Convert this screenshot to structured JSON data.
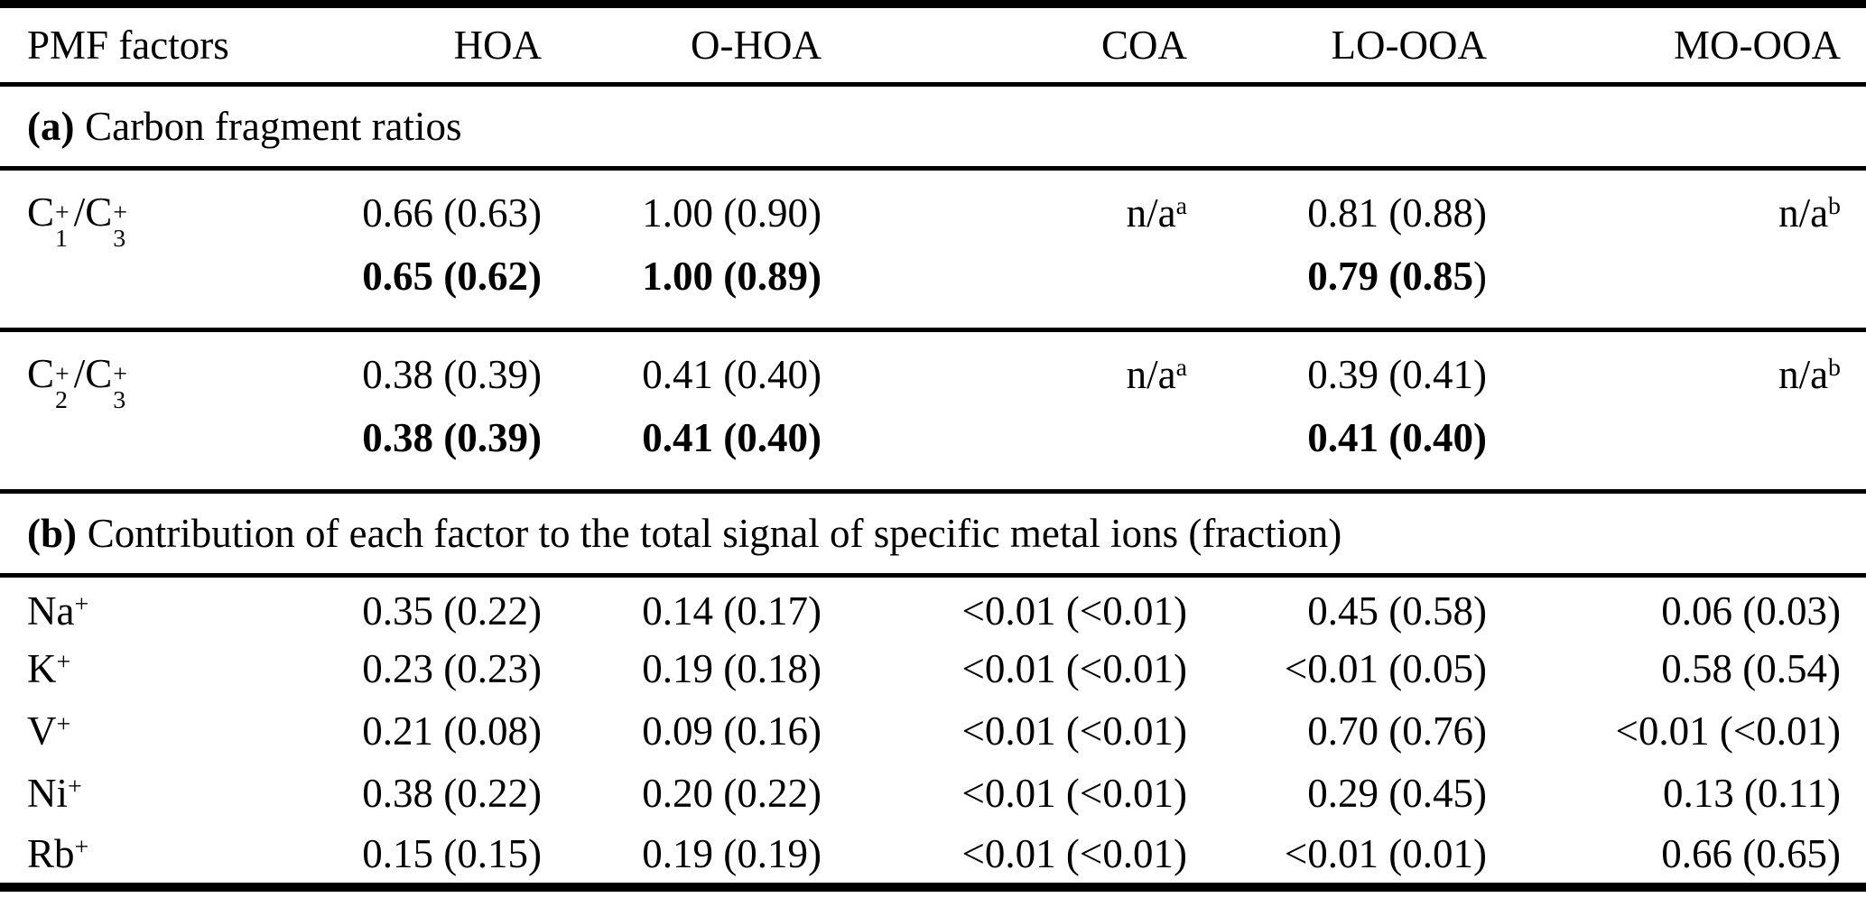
{
  "page": {
    "background_color": "#ffffff",
    "text_color": "#000000"
  },
  "table": {
    "header": {
      "row_label": "PMF factors",
      "columns": [
        "HOA",
        "O-HOA",
        "COA",
        "LO-OOA",
        "MO-OOA"
      ]
    },
    "section_a": {
      "marker": "(a)",
      "title": "Carbon fragment ratios",
      "rows": [
        {
          "label": {
            "atom1": "C",
            "sup1": "+",
            "sub1": "1",
            "slash": "/",
            "atom2": "C",
            "sup2": "+",
            "sub2": "3"
          },
          "cells": [
            {
              "line1": "0.66 (0.63)",
              "line2": "0.65 (0.62)"
            },
            {
              "line1": "1.00 (0.90)",
              "line2": "1.00 (0.89)"
            },
            {
              "line1": "n/a",
              "line1_sup": "a"
            },
            {
              "line1": "0.81 (0.88)",
              "line2": "0.79 (0.85",
              "line2_tail": ")"
            },
            {
              "line1": "n/a",
              "line1_sup": "b"
            }
          ]
        },
        {
          "label": {
            "atom1": "C",
            "sup1": "+",
            "sub1": "2",
            "slash": "/",
            "atom2": "C",
            "sup2": "+",
            "sub2": "3"
          },
          "cells": [
            {
              "line1": "0.38 (0.39)",
              "line2": "0.38 (0.39)"
            },
            {
              "line1": "0.41 (0.40)",
              "line2": "0.41 (0.40)"
            },
            {
              "line1": "n/a",
              "line1_sup": "a"
            },
            {
              "line1": "0.39 (0.41)",
              "line2": "0.41 (0.40)"
            },
            {
              "line1": "n/a",
              "line1_sup": "b"
            }
          ]
        }
      ]
    },
    "section_b": {
      "marker": "(b)",
      "title": "Contribution of each factor to the total signal of specific metal ions (fraction)",
      "rows": [
        {
          "ion": "Na",
          "charge": "+",
          "cells": [
            "0.35 (0.22)",
            "0.14 (0.17)",
            "<0.01 (<0.01)",
            "0.45 (0.58)",
            "0.06 (0.03)"
          ]
        },
        {
          "ion": "K",
          "charge": "+",
          "cells": [
            "0.23 (0.23)",
            "0.19 (0.18)",
            "<0.01 (<0.01)",
            "<0.01 (0.05)",
            "0.58 (0.54)"
          ]
        },
        {
          "ion": "V",
          "charge": "+",
          "cells": [
            "0.21 (0.08)",
            "0.09 (0.16)",
            "<0.01 (<0.01)",
            "0.70 (0.76)",
            "<0.01 (<0.01)"
          ]
        },
        {
          "ion": "Ni",
          "charge": "+",
          "cells": [
            "0.38 (0.22)",
            "0.20 (0.22)",
            "<0.01 (<0.01)",
            "0.29 (0.45)",
            "0.13 (0.11)"
          ]
        },
        {
          "ion": "Rb",
          "charge": "+",
          "cells": [
            "0.15 (0.15)",
            "0.19 (0.19)",
            "<0.01 (<0.01)",
            "<0.01 (0.01)",
            "0.66 (0.65)"
          ]
        }
      ]
    }
  }
}
